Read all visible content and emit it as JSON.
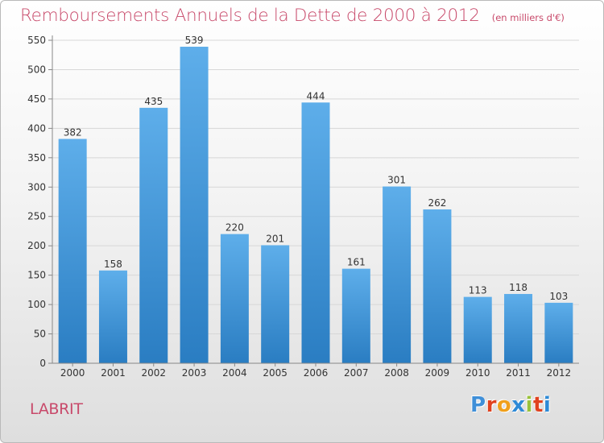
{
  "title": {
    "main": "Remboursements Annuels de la Dette de 2000 à 2012",
    "unit": "(en milliers d'€)"
  },
  "commune": "LABRIT",
  "logo": {
    "text": "Proxiti",
    "letter_colors": [
      "#3f8fd8",
      "#e0421f",
      "#f0a01c",
      "#2e8ad6",
      "#9ac23c",
      "#e0421f",
      "#2e8ad6"
    ]
  },
  "colors": {
    "bar_top": "#5eaeea",
    "bar_bottom": "#2a7dc2",
    "grid": "#d7d7d7",
    "axis": "#888888",
    "title": "#c8496a"
  },
  "chart_data": {
    "type": "bar",
    "categories": [
      "2000",
      "2001",
      "2002",
      "2003",
      "2004",
      "2005",
      "2006",
      "2007",
      "2008",
      "2009",
      "2010",
      "2011",
      "2012"
    ],
    "values": [
      382,
      158,
      435,
      539,
      220,
      201,
      444,
      161,
      301,
      262,
      113,
      118,
      103
    ],
    "data_labels": [
      "382",
      "158",
      "435",
      "539",
      "220",
      "201",
      "444",
      "161",
      "301",
      "262",
      "113",
      "118",
      "103"
    ],
    "yticks": [
      0,
      50,
      100,
      150,
      200,
      250,
      300,
      350,
      400,
      450,
      500,
      550
    ],
    "ylim": [
      0,
      550
    ],
    "grid": true,
    "legend": "none"
  }
}
